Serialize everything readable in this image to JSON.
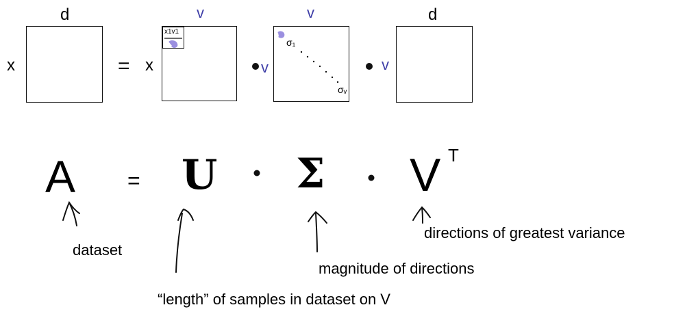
{
  "top_row": {
    "label_d_left": "d",
    "label_x_left": "x",
    "equals": "=",
    "label_x_u": "x",
    "label_v_u": "v",
    "u_inset_label": "x1v1",
    "label_v_sigma": "v",
    "sigma_1": "σ₁",
    "sigma_2": "σᵥ",
    "label_v_before_sigma": "v",
    "label_v_before_vt": "v",
    "label_d_right": "d"
  },
  "equation": {
    "a": "A",
    "equals": "=",
    "u": "U",
    "sigma": "Σ",
    "v": "V",
    "transpose": "T"
  },
  "annotations": {
    "dataset": "dataset",
    "u_note": "“length” of samples in dataset on V",
    "sigma_note": "magnitude of directions",
    "v_note": "directions of greatest variance"
  },
  "colors": {
    "ink": "#111111",
    "accent": "#3f3fa8",
    "highlight": "#9b8fe0"
  }
}
